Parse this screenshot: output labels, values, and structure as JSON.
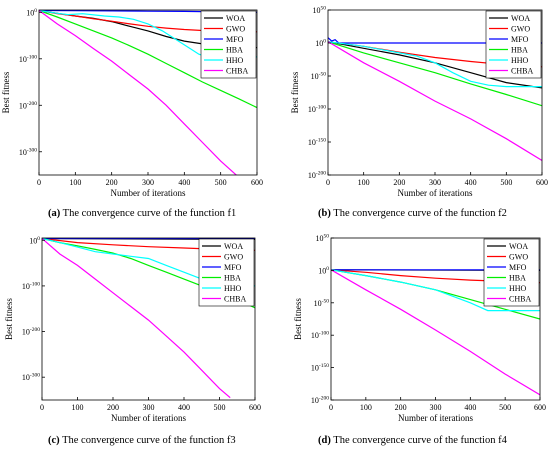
{
  "figure": {
    "captions": [
      {
        "letter": "(a)",
        "text": " The convergence curve of the function f1"
      },
      {
        "letter": "(b)",
        "text": " The convergence curve of the function f2"
      },
      {
        "letter": "(c)",
        "text": " The convergence curve of the function f3"
      },
      {
        "letter": "(d)",
        "text": " The convergence curve of the function f4"
      }
    ]
  },
  "chart_data": [
    {
      "type": "line",
      "panel": "a",
      "xlabel": "Number of iterations",
      "ylabel": "Best fitness",
      "yscale": "log",
      "xlim": [
        0,
        600
      ],
      "ylim_exp": [
        -350,
        5
      ],
      "x_ticks": [
        "0",
        "100",
        "200",
        "300",
        "400",
        "500",
        "600"
      ],
      "y_ticks": [
        {
          "base": "10",
          "exp": "0"
        },
        {
          "base": "10",
          "exp": "-100"
        },
        {
          "base": "10",
          "exp": "-200"
        },
        {
          "base": "10",
          "exp": "-300"
        }
      ],
      "y_tick_values": [
        0,
        -100,
        -200,
        -300
      ],
      "legend_position": "top-right",
      "series": [
        {
          "name": "WOA",
          "color": "#000000",
          "x": [
            0,
            50,
            100,
            150,
            200,
            250,
            300,
            350,
            400,
            450,
            500,
            550,
            600
          ],
          "log10_y": [
            4,
            -2,
            -8,
            -13,
            -20,
            -30,
            -40,
            -52,
            -62,
            -68,
            -72,
            -74,
            -76
          ]
        },
        {
          "name": "GWO",
          "color": "#ff0000",
          "x": [
            0,
            50,
            100,
            150,
            200,
            250,
            300,
            350,
            400,
            450,
            500,
            550,
            600
          ],
          "log10_y": [
            4,
            -3,
            -8,
            -14,
            -19,
            -25,
            -30,
            -34,
            -37,
            -39,
            -40,
            -41,
            -42
          ]
        },
        {
          "name": "MFO",
          "color": "#0000ff",
          "x": [
            0,
            100,
            200,
            300,
            400,
            500,
            600
          ],
          "log10_y": [
            4,
            3.5,
            3,
            2.5,
            2,
            1,
            0
          ]
        },
        {
          "name": "HBA",
          "color": "#00ee00",
          "x": [
            0,
            50,
            100,
            150,
            200,
            250,
            300,
            350,
            400,
            450,
            500,
            550,
            600
          ],
          "log10_y": [
            4,
            -10,
            -25,
            -40,
            -55,
            -72,
            -90,
            -110,
            -130,
            -150,
            -168,
            -186,
            -205
          ]
        },
        {
          "name": "HHO",
          "color": "#00ffff",
          "x": [
            0,
            50,
            80,
            120,
            180,
            220,
            260,
            300,
            340,
            380,
            420,
            440,
            460,
            500,
            540,
            600
          ],
          "log10_y": [
            4,
            -2,
            -5,
            -3,
            -8,
            -10,
            -15,
            -25,
            -40,
            -60,
            -80,
            -90,
            -95,
            -96,
            -96,
            -96
          ]
        },
        {
          "name": "CHBA",
          "color": "#ff00ff",
          "x": [
            0,
            50,
            100,
            150,
            200,
            250,
            300,
            350,
            400,
            450,
            500,
            550
          ],
          "log10_y": [
            4,
            -25,
            -50,
            -78,
            -105,
            -135,
            -165,
            -200,
            -240,
            -280,
            -320,
            -355
          ]
        }
      ]
    },
    {
      "type": "line",
      "panel": "b",
      "xlabel": "Number of iterations",
      "ylabel": "Best fitness",
      "yscale": "log",
      "xlim": [
        0,
        600
      ],
      "ylim_exp": [
        -200,
        50
      ],
      "x_ticks": [
        "0",
        "100",
        "200",
        "300",
        "400",
        "500",
        "600"
      ],
      "y_ticks": [
        {
          "base": "10",
          "exp": "50"
        },
        {
          "base": "10",
          "exp": "0"
        },
        {
          "base": "10",
          "exp": "-50"
        },
        {
          "base": "10",
          "exp": "-100"
        },
        {
          "base": "10",
          "exp": "-150"
        },
        {
          "base": "10",
          "exp": "-200"
        }
      ],
      "y_tick_values": [
        50,
        0,
        -50,
        -100,
        -150,
        -200
      ],
      "legend_position": "top-right",
      "series": [
        {
          "name": "WOA",
          "color": "#000000",
          "x": [
            0,
            100,
            200,
            300,
            400,
            500,
            600
          ],
          "log10_y": [
            2,
            -8,
            -18,
            -30,
            -45,
            -60,
            -68
          ]
        },
        {
          "name": "GWO",
          "color": "#ff0000",
          "x": [
            0,
            100,
            200,
            300,
            400,
            500,
            600
          ],
          "log10_y": [
            2,
            -5,
            -14,
            -22,
            -28,
            -33,
            -36
          ]
        },
        {
          "name": "MFO",
          "color": "#0000ff",
          "x": [
            0,
            10,
            20,
            30,
            50,
            100,
            600
          ],
          "log10_y": [
            8,
            3,
            5,
            0,
            0,
            0,
            0
          ]
        },
        {
          "name": "HBA",
          "color": "#00ee00",
          "x": [
            0,
            100,
            200,
            300,
            400,
            500,
            600
          ],
          "log10_y": [
            2,
            -15,
            -30,
            -45,
            -62,
            -78,
            -95
          ]
        },
        {
          "name": "HHO",
          "color": "#00ffff",
          "x": [
            0,
            100,
            200,
            250,
            300,
            350,
            400,
            450,
            500,
            550,
            600
          ],
          "log10_y": [
            2,
            -5,
            -15,
            -20,
            -30,
            -45,
            -58,
            -64,
            -66,
            -66,
            -66
          ]
        },
        {
          "name": "CHBA",
          "color": "#ff00ff",
          "x": [
            0,
            100,
            200,
            300,
            400,
            500,
            600
          ],
          "log10_y": [
            2,
            -30,
            -58,
            -88,
            -115,
            -145,
            -178
          ]
        }
      ]
    },
    {
      "type": "line",
      "panel": "c",
      "xlabel": "Number of iterations",
      "ylabel": "Best fitness",
      "yscale": "log",
      "xlim": [
        0,
        600
      ],
      "ylim_exp": [
        -350,
        5
      ],
      "x_ticks": [
        "0",
        "100",
        "200",
        "300",
        "400",
        "500",
        "600"
      ],
      "y_ticks": [
        {
          "base": "10",
          "exp": "0"
        },
        {
          "base": "10",
          "exp": "-100"
        },
        {
          "base": "10",
          "exp": "-200"
        },
        {
          "base": "10",
          "exp": "-300"
        }
      ],
      "y_tick_values": [
        0,
        -100,
        -200,
        -300
      ],
      "legend_position": "top-right",
      "series": [
        {
          "name": "WOA",
          "color": "#000000",
          "x": [
            0,
            600
          ],
          "log10_y": [
            4,
            2
          ]
        },
        {
          "name": "GWO",
          "color": "#ff0000",
          "x": [
            0,
            100,
            200,
            300,
            400,
            500,
            600
          ],
          "log10_y": [
            4,
            -5,
            -10,
            -14,
            -17,
            -20,
            -22
          ]
        },
        {
          "name": "MFO",
          "color": "#0000ff",
          "x": [
            0,
            600
          ],
          "log10_y": [
            4,
            4
          ]
        },
        {
          "name": "HBA",
          "color": "#00ee00",
          "x": [
            0,
            50,
            100,
            150,
            200,
            250,
            300,
            350,
            400,
            450,
            500,
            550,
            600
          ],
          "log10_y": [
            4,
            -5,
            -12,
            -20,
            -28,
            -40,
            -55,
            -70,
            -85,
            -100,
            -115,
            -130,
            -148
          ]
        },
        {
          "name": "HHO",
          "color": "#00ffff",
          "x": [
            0,
            50,
            100,
            150,
            200,
            250,
            300,
            350,
            400,
            450,
            500,
            550,
            600
          ],
          "log10_y": [
            4,
            -5,
            -15,
            -25,
            -30,
            -35,
            -40,
            -55,
            -70,
            -85,
            -100,
            -100,
            -100
          ]
        },
        {
          "name": "CHBA",
          "color": "#ff00ff",
          "x": [
            0,
            50,
            100,
            150,
            200,
            250,
            300,
            350,
            400,
            450,
            500,
            530
          ],
          "log10_y": [
            4,
            -30,
            -55,
            -85,
            -115,
            -145,
            -175,
            -210,
            -245,
            -285,
            -325,
            -345
          ]
        }
      ]
    },
    {
      "type": "line",
      "panel": "d",
      "xlabel": "Number of iterations",
      "ylabel": "Best fitness",
      "yscale": "log",
      "xlim": [
        0,
        600
      ],
      "ylim_exp": [
        -200,
        50
      ],
      "x_ticks": [
        "0",
        "100",
        "200",
        "300",
        "400",
        "500",
        "600"
      ],
      "y_ticks": [
        {
          "base": "10",
          "exp": "50"
        },
        {
          "base": "10",
          "exp": "0"
        },
        {
          "base": "10",
          "exp": "-50"
        },
        {
          "base": "10",
          "exp": "-100"
        },
        {
          "base": "10",
          "exp": "-150"
        },
        {
          "base": "10",
          "exp": "-200"
        }
      ],
      "y_tick_values": [
        50,
        0,
        -50,
        -100,
        -150,
        -200
      ],
      "legend_position": "top-right",
      "series": [
        {
          "name": "WOA",
          "color": "#000000",
          "x": [
            0,
            600
          ],
          "log10_y": [
            1,
            0
          ]
        },
        {
          "name": "GWO",
          "color": "#ff0000",
          "x": [
            0,
            100,
            200,
            300,
            400,
            500,
            600
          ],
          "log10_y": [
            1,
            -3,
            -8,
            -12,
            -15,
            -17,
            -19
          ]
        },
        {
          "name": "MFO",
          "color": "#0000ff",
          "x": [
            0,
            600
          ],
          "log10_y": [
            1,
            1
          ]
        },
        {
          "name": "HBA",
          "color": "#00ee00",
          "x": [
            0,
            100,
            200,
            300,
            400,
            500,
            600
          ],
          "log10_y": [
            1,
            -8,
            -18,
            -30,
            -45,
            -60,
            -75
          ]
        },
        {
          "name": "HHO",
          "color": "#00ffff",
          "x": [
            0,
            100,
            200,
            300,
            400,
            450,
            500,
            550,
            600
          ],
          "log10_y": [
            1,
            -8,
            -18,
            -30,
            -50,
            -62,
            -62,
            -62,
            -62
          ]
        },
        {
          "name": "CHBA",
          "color": "#ff00ff",
          "x": [
            0,
            100,
            200,
            300,
            400,
            500,
            600
          ],
          "log10_y": [
            1,
            -30,
            -60,
            -92,
            -125,
            -160,
            -192
          ]
        }
      ]
    }
  ]
}
